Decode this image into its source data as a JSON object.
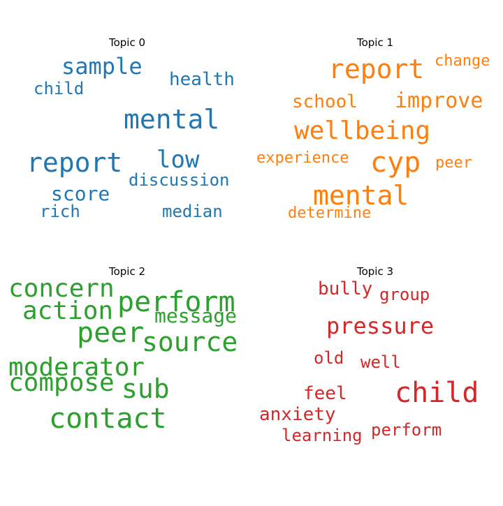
{
  "chart_data": [
    {
      "type": "wordcloud",
      "title": "Topic 0",
      "color": "#1f77b4",
      "words": [
        "sample",
        "health",
        "child",
        "mental",
        "report",
        "low",
        "discussion",
        "score",
        "rich",
        "median"
      ]
    },
    {
      "type": "wordcloud",
      "title": "Topic 1",
      "color": "#ff7f0e",
      "words": [
        "report",
        "change",
        "school",
        "improve",
        "wellbeing",
        "experience",
        "cyp",
        "peer",
        "mental",
        "determine"
      ]
    },
    {
      "type": "wordcloud",
      "title": "Topic 2",
      "color": "#2ca02c",
      "words": [
        "concern",
        "perform",
        "action",
        "message",
        "peer",
        "source",
        "moderator",
        "compose",
        "sub",
        "contact"
      ]
    },
    {
      "type": "wordcloud",
      "title": "Topic 3",
      "color": "#d62728",
      "words": [
        "bully",
        "group",
        "pressure",
        "old",
        "well",
        "child",
        "feel",
        "anxiety",
        "perform",
        "learning"
      ]
    }
  ]
}
